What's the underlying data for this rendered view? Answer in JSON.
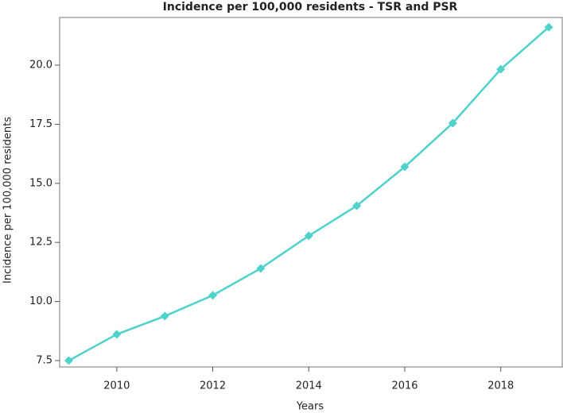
{
  "chart_data": {
    "type": "line",
    "title": "Incidence per 100,000 residents - TSR and PSR",
    "x_label": "Years",
    "y_label": "Incidence per 100,000 residents",
    "x": [
      2009,
      2010,
      2011,
      2012,
      2013,
      2014,
      2015,
      2016,
      2017,
      2018,
      2019
    ],
    "values": [
      7.5,
      8.61,
      9.38,
      10.26,
      11.4,
      12.78,
      14.05,
      15.7,
      17.55,
      19.83,
      21.61
    ],
    "color": "#4fd2cb",
    "xlim": [
      2008.81,
      2019.28
    ],
    "xticks": [
      2010,
      2012,
      2014,
      2016,
      2018
    ],
    "ylim": [
      7.23,
      22.02
    ],
    "yticks": [
      7.5,
      {
        "value": 10,
        "label": "10.0"
      },
      12.5,
      {
        "value": 15,
        "label": "15.0"
      },
      17.5,
      {
        "value": 20,
        "label": "20.0"
      }
    ],
    "grid": false
  }
}
